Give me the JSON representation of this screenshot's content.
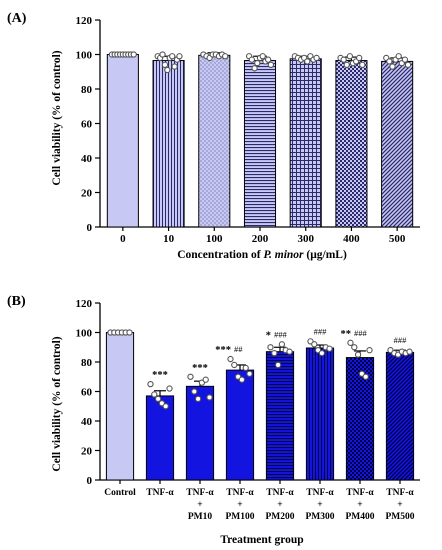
{
  "chart_data": [
    {
      "type": "bar",
      "panel_label": "(A)",
      "ylabel": "Cell viability (% of control)",
      "xlabel_parts": [
        "Concentration of ",
        "P. minor",
        " (μg/mL)"
      ],
      "ylim": [
        0,
        120
      ],
      "yticks": [
        "0",
        "20",
        "40",
        "60",
        "80",
        "100",
        "120"
      ],
      "categories": [
        "0",
        "10",
        "100",
        "200",
        "300",
        "400",
        "500"
      ],
      "values": [
        100,
        96.5,
        99.5,
        96.5,
        97.5,
        96.5,
        96
      ],
      "errors": [
        0.5,
        2.5,
        1.5,
        2.5,
        1.5,
        2,
        2
      ],
      "points": [
        [
          100,
          100,
          100,
          100,
          100,
          100,
          100,
          100,
          100
        ],
        [
          99,
          98,
          100,
          94,
          91,
          98,
          99,
          93,
          97,
          99
        ],
        [
          100,
          99,
          98,
          100,
          100,
          99,
          100,
          99
        ],
        [
          99,
          97,
          92,
          95,
          98,
          99,
          96,
          97,
          94
        ],
        [
          99,
          98,
          97,
          98,
          96,
          99,
          97,
          98
        ],
        [
          98,
          97,
          94,
          99,
          95,
          96,
          98,
          94
        ],
        [
          98,
          96,
          93,
          97,
          99,
          95,
          97,
          94
        ]
      ],
      "colors": {
        "fill": "#c8c8f5",
        "pattern": "#2a2a6a"
      },
      "patterns": [
        "solid",
        "vlines",
        "dots",
        "hlines",
        "grid",
        "checker",
        "diag"
      ]
    },
    {
      "type": "bar",
      "panel_label": "(B)",
      "ylabel": "Cell viability (% of control)",
      "xlabel": "Treatment group",
      "ylim": [
        0,
        120
      ],
      "yticks": [
        "0",
        "20",
        "40",
        "60",
        "80",
        "100",
        "120"
      ],
      "categories": [
        [
          "Control"
        ],
        [
          "TNF-α"
        ],
        [
          "TNF-α",
          "+",
          "PM10"
        ],
        [
          "TNF-α",
          "+",
          "PM100"
        ],
        [
          "TNF-α",
          "+",
          "PM200"
        ],
        [
          "TNF-α",
          "+",
          "PM300"
        ],
        [
          "TNF-α",
          "+",
          "PM400"
        ],
        [
          "TNF-α",
          "+",
          "PM500"
        ]
      ],
      "values": [
        100,
        57,
        63.5,
        74.5,
        87,
        89.5,
        83,
        86.5
      ],
      "errors": [
        0.5,
        3.5,
        3.5,
        3.5,
        3,
        2,
        4.5,
        1.5
      ],
      "points": [
        [
          100,
          100,
          100,
          100,
          100,
          100
        ],
        [
          65,
          58,
          55,
          52,
          50,
          62
        ],
        [
          70,
          60,
          55,
          66,
          68,
          56
        ],
        [
          82,
          78,
          70,
          68,
          76,
          72
        ],
        [
          90,
          86,
          78,
          92,
          88,
          87
        ],
        [
          94,
          92,
          88,
          86,
          90,
          89
        ],
        [
          93,
          90,
          85,
          72,
          70,
          88
        ],
        [
          88,
          86,
          85,
          87,
          86,
          87
        ]
      ],
      "annotations": [
        {
          "stars": "",
          "hash": ""
        },
        {
          "stars": "***",
          "hash": ""
        },
        {
          "stars": "***",
          "hash": ""
        },
        {
          "stars": "***",
          "hash": "##"
        },
        {
          "stars": "*",
          "hash": "###"
        },
        {
          "stars": "",
          "hash": "###"
        },
        {
          "stars": "**",
          "hash": "###"
        },
        {
          "stars": "",
          "hash": "###"
        }
      ],
      "colors": {
        "control": "#c8c8f5",
        "tnf": "#1414e0",
        "pattern": "#000044"
      },
      "patterns": [
        "solid",
        "solid",
        "solid",
        "solid",
        "hlines",
        "vlines",
        "checker",
        "diag"
      ]
    }
  ]
}
